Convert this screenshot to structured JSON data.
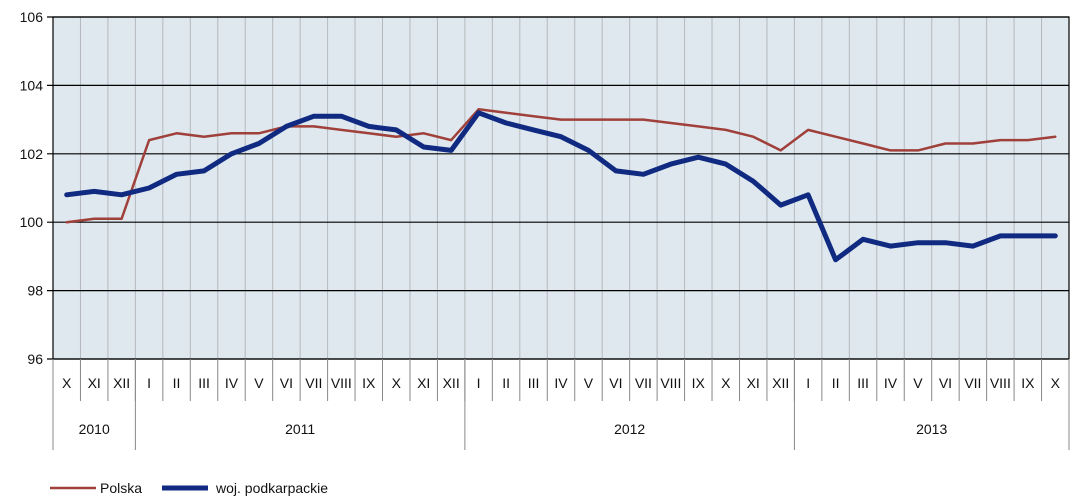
{
  "chart_data": {
    "type": "line",
    "ylim": [
      96,
      106
    ],
    "yticks": [
      96,
      98,
      100,
      102,
      104,
      106
    ],
    "grid": true,
    "legend_position": "bottom-left",
    "categories": [
      "X",
      "XI",
      "XII",
      "I",
      "II",
      "III",
      "IV",
      "V",
      "VI",
      "VII",
      "VIII",
      "IX",
      "X",
      "XI",
      "XII",
      "I",
      "II",
      "III",
      "IV",
      "V",
      "VI",
      "VII",
      "VIII",
      "IX",
      "X",
      "XI",
      "XII",
      "I",
      "II",
      "III",
      "IV",
      "V",
      "VI",
      "VII",
      "VIII",
      "IX",
      "X"
    ],
    "years": [
      {
        "label": "2010",
        "start": 0,
        "count": 3
      },
      {
        "label": "2011",
        "start": 3,
        "count": 12
      },
      {
        "label": "2012",
        "start": 15,
        "count": 12
      },
      {
        "label": "2013",
        "start": 27,
        "count": 10
      }
    ],
    "series": [
      {
        "name": "Polska",
        "color": "#a0403a",
        "values": [
          100.0,
          100.1,
          100.1,
          102.4,
          102.6,
          102.5,
          102.6,
          102.6,
          102.8,
          102.8,
          102.7,
          102.6,
          102.5,
          102.6,
          102.4,
          103.3,
          103.2,
          103.1,
          103.0,
          103.0,
          103.0,
          103.0,
          102.9,
          102.8,
          102.7,
          102.5,
          102.1,
          102.7,
          102.5,
          102.3,
          102.1,
          102.1,
          102.3,
          102.3,
          102.4,
          102.4,
          102.5
        ]
      },
      {
        "name": "woj. podkarpackie",
        "color": "#0f2a80",
        "values": [
          100.8,
          100.9,
          100.8,
          101.0,
          101.4,
          101.5,
          102.0,
          102.3,
          102.8,
          103.1,
          103.1,
          102.8,
          102.7,
          102.2,
          102.1,
          103.2,
          102.9,
          102.7,
          102.5,
          102.1,
          101.5,
          101.4,
          101.7,
          101.9,
          101.7,
          101.2,
          100.5,
          100.8,
          98.9,
          99.5,
          99.3,
          99.4,
          99.4,
          99.3,
          99.6,
          99.6,
          99.6
        ]
      }
    ]
  }
}
